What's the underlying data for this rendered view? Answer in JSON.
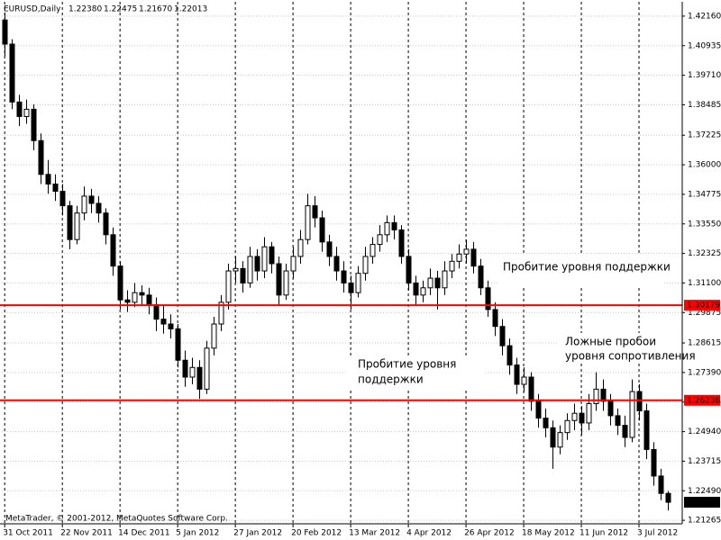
{
  "chart_data": {
    "type": "candlestick",
    "symbol": "EURUSD,Daily",
    "last_bar_labels": [
      "1.22380",
      "1.22475",
      "1.21670",
      "1.22013"
    ],
    "footer": "MetaTrader, © 2001-2012, MetaQuotes Software Corp.",
    "ohlc": [
      [
        1.42,
        1.423,
        1.405,
        1.41
      ],
      [
        1.41,
        1.412,
        1.383,
        1.386
      ],
      [
        1.386,
        1.389,
        1.376,
        1.38
      ],
      [
        1.38,
        1.387,
        1.377,
        1.383
      ],
      [
        1.383,
        1.385,
        1.366,
        1.37
      ],
      [
        1.37,
        1.373,
        1.352,
        1.356
      ],
      [
        1.356,
        1.362,
        1.348,
        1.352
      ],
      [
        1.352,
        1.356,
        1.345,
        1.349
      ],
      [
        1.349,
        1.352,
        1.339,
        1.343
      ],
      [
        1.343,
        1.345,
        1.325,
        1.329
      ],
      [
        1.329,
        1.343,
        1.327,
        1.34
      ],
      [
        1.34,
        1.351,
        1.337,
        1.347
      ],
      [
        1.347,
        1.35,
        1.34,
        1.344
      ],
      [
        1.344,
        1.347,
        1.336,
        1.34
      ],
      [
        1.34,
        1.342,
        1.327,
        1.331
      ],
      [
        1.331,
        1.334,
        1.314,
        1.318
      ],
      [
        1.318,
        1.32,
        1.3,
        1.304
      ],
      [
        1.304,
        1.308,
        1.299,
        1.303
      ],
      [
        1.303,
        1.311,
        1.301,
        1.307
      ],
      [
        1.307,
        1.31,
        1.302,
        1.306
      ],
      [
        1.306,
        1.309,
        1.298,
        1.302
      ],
      [
        1.302,
        1.305,
        1.291,
        1.296
      ],
      [
        1.296,
        1.302,
        1.29,
        1.294
      ],
      [
        1.294,
        1.298,
        1.288,
        1.292
      ],
      [
        1.292,
        1.294,
        1.276,
        1.279
      ],
      [
        1.279,
        1.283,
        1.268,
        1.272
      ],
      [
        1.272,
        1.28,
        1.269,
        1.276
      ],
      [
        1.276,
        1.279,
        1.263,
        1.267
      ],
      [
        1.267,
        1.287,
        1.265,
        1.284
      ],
      [
        1.284,
        1.297,
        1.281,
        1.294
      ],
      [
        1.294,
        1.306,
        1.291,
        1.303
      ],
      [
        1.303,
        1.319,
        1.3,
        1.316
      ],
      [
        1.316,
        1.322,
        1.311,
        1.317
      ],
      [
        1.317,
        1.32,
        1.307,
        1.311
      ],
      [
        1.311,
        1.326,
        1.309,
        1.322
      ],
      [
        1.322,
        1.325,
        1.312,
        1.316
      ],
      [
        1.316,
        1.33,
        1.313,
        1.326
      ],
      [
        1.326,
        1.328,
        1.315,
        1.319
      ],
      [
        1.319,
        1.322,
        1.302,
        1.306
      ],
      [
        1.306,
        1.319,
        1.304,
        1.316
      ],
      [
        1.316,
        1.326,
        1.313,
        1.322
      ],
      [
        1.322,
        1.333,
        1.319,
        1.329
      ],
      [
        1.329,
        1.348,
        1.327,
        1.343
      ],
      [
        1.343,
        1.347,
        1.334,
        1.338
      ],
      [
        1.338,
        1.341,
        1.324,
        1.328
      ],
      [
        1.328,
        1.331,
        1.318,
        1.322
      ],
      [
        1.322,
        1.326,
        1.312,
        1.316
      ],
      [
        1.316,
        1.32,
        1.307,
        1.311
      ],
      [
        1.311,
        1.314,
        1.3,
        1.307
      ],
      [
        1.307,
        1.318,
        1.305,
        1.315
      ],
      [
        1.315,
        1.326,
        1.312,
        1.322
      ],
      [
        1.322,
        1.33,
        1.319,
        1.327
      ],
      [
        1.327,
        1.335,
        1.324,
        1.331
      ],
      [
        1.331,
        1.339,
        1.328,
        1.336
      ],
      [
        1.336,
        1.339,
        1.329,
        1.333
      ],
      [
        1.333,
        1.335,
        1.319,
        1.322
      ],
      [
        1.322,
        1.325,
        1.308,
        1.311
      ],
      [
        1.311,
        1.314,
        1.302,
        1.306
      ],
      [
        1.306,
        1.312,
        1.303,
        1.309
      ],
      [
        1.309,
        1.317,
        1.306,
        1.313
      ],
      [
        1.313,
        1.316,
        1.3,
        1.309
      ],
      [
        1.309,
        1.32,
        1.306,
        1.316
      ],
      [
        1.316,
        1.323,
        1.313,
        1.32
      ],
      [
        1.32,
        1.327,
        1.317,
        1.323
      ],
      [
        1.323,
        1.329,
        1.319,
        1.325
      ],
      [
        1.325,
        1.328,
        1.315,
        1.318
      ],
      [
        1.318,
        1.321,
        1.306,
        1.309
      ],
      [
        1.309,
        1.312,
        1.297,
        1.3
      ],
      [
        1.3,
        1.303,
        1.289,
        1.293
      ],
      [
        1.293,
        1.296,
        1.281,
        1.285
      ],
      [
        1.285,
        1.288,
        1.273,
        1.277
      ],
      [
        1.277,
        1.28,
        1.265,
        1.269
      ],
      [
        1.269,
        1.276,
        1.266,
        1.272
      ],
      [
        1.272,
        1.274,
        1.258,
        1.262
      ],
      [
        1.262,
        1.265,
        1.251,
        1.255
      ],
      [
        1.255,
        1.259,
        1.247,
        1.251
      ],
      [
        1.251,
        1.254,
        1.234,
        1.243
      ],
      [
        1.243,
        1.252,
        1.24,
        1.249
      ],
      [
        1.249,
        1.257,
        1.246,
        1.254
      ],
      [
        1.254,
        1.261,
        1.25,
        1.257
      ],
      [
        1.257,
        1.26,
        1.248,
        1.253
      ],
      [
        1.253,
        1.265,
        1.25,
        1.261
      ],
      [
        1.261,
        1.274,
        1.258,
        1.267
      ],
      [
        1.267,
        1.271,
        1.258,
        1.262
      ],
      [
        1.262,
        1.265,
        1.252,
        1.256
      ],
      [
        1.256,
        1.259,
        1.248,
        1.252
      ],
      [
        1.252,
        1.256,
        1.243,
        1.247
      ],
      [
        1.247,
        1.271,
        1.245,
        1.266
      ],
      [
        1.266,
        1.269,
        1.254,
        1.258
      ],
      [
        1.258,
        1.261,
        1.238,
        1.242
      ],
      [
        1.242,
        1.245,
        1.227,
        1.231
      ],
      [
        1.231,
        1.234,
        1.221,
        1.2238
      ],
      [
        1.2238,
        1.22475,
        1.2167,
        1.22013
      ]
    ],
    "bull_color": "#ffffff",
    "bear_color": "#000000",
    "xlim": [
      -0.4,
      94
    ],
    "xticks": [
      {
        "value": 0,
        "label": "31 Oct 2011"
      },
      {
        "value": 8,
        "label": "22 Nov 2011"
      },
      {
        "value": 16,
        "label": "14 Dec 2011"
      },
      {
        "value": 24,
        "label": "5 Jan 2012"
      },
      {
        "value": 32,
        "label": "27 Jan 2012"
      },
      {
        "value": 40,
        "label": "20 Feb 2012"
      },
      {
        "value": 48,
        "label": "13 Mar 2012"
      },
      {
        "value": 56,
        "label": "4 Apr 2012"
      },
      {
        "value": 64,
        "label": "26 Apr 2012"
      },
      {
        "value": 72,
        "label": "18 May 2012"
      },
      {
        "value": 80,
        "label": "11 Jun 2012"
      },
      {
        "value": 88,
        "label": "3 Jul 2012"
      }
    ],
    "ylim": [
      1.2112,
      1.4253
    ],
    "yticks": [
      {
        "value": 1.4216,
        "label": "1.42160"
      },
      1.40935,
      {
        "value": 1.3971,
        "label": "1.39710"
      },
      1.38485,
      1.37225,
      {
        "value": 1.36,
        "label": "1.36000"
      },
      1.34775,
      {
        "value": 1.3355,
        "label": "1.33550"
      },
      1.32325,
      {
        "value": 1.311,
        "label": "1.31100"
      },
      1.29875,
      1.28615,
      {
        "value": 1.2739,
        "label": "1.27390"
      },
      1.26165,
      {
        "value": 1.2494,
        "label": "1.24940"
      },
      1.23715,
      {
        "value": 1.2249,
        "label": "1.22490"
      },
      1.21265
    ],
    "grid": true,
    "levels": [
      {
        "value": 1.30179,
        "color": "#ff0000"
      },
      {
        "value": 1.26238,
        "color": "#ff0000"
      }
    ],
    "annotations": [
      {
        "lines": [
          "Пробитие уровня поддержки"
        ]
      },
      {
        "lines": [
          "Пробитие уровня",
          "поддержки"
        ]
      },
      {
        "lines": [
          "Ложные пробои",
          "уровня сопротивления"
        ]
      }
    ]
  }
}
